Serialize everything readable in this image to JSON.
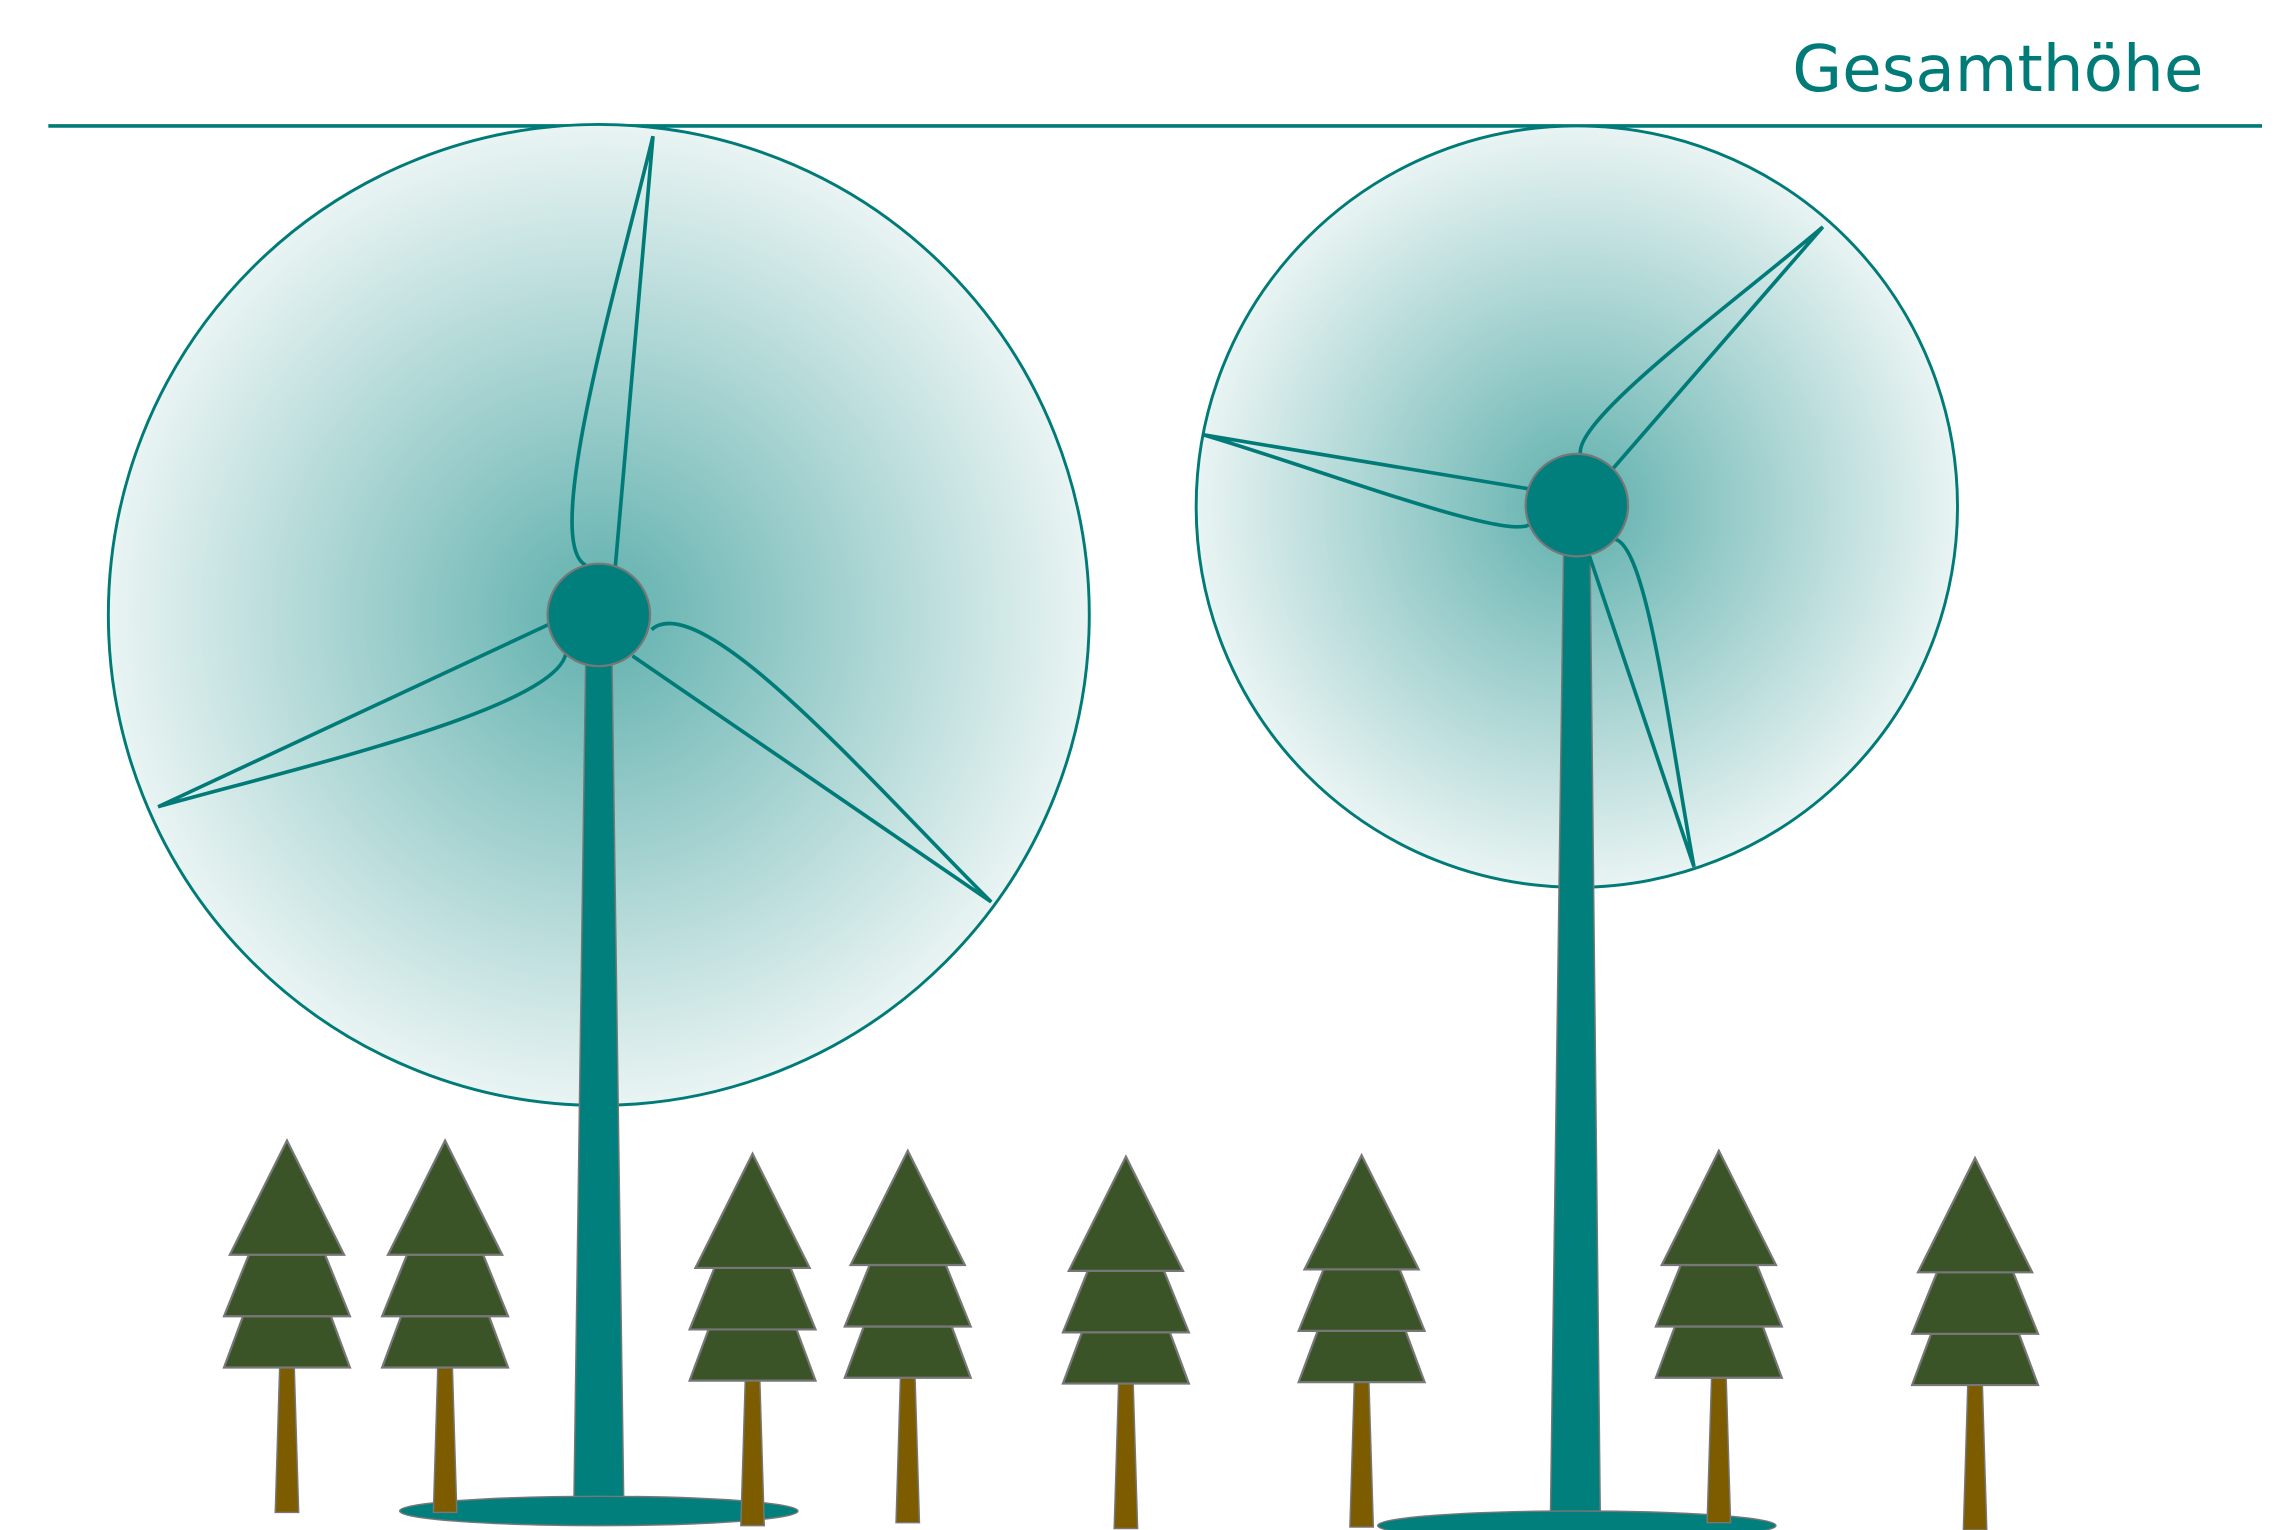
{
  "label": "Gesamthöhe"
}
